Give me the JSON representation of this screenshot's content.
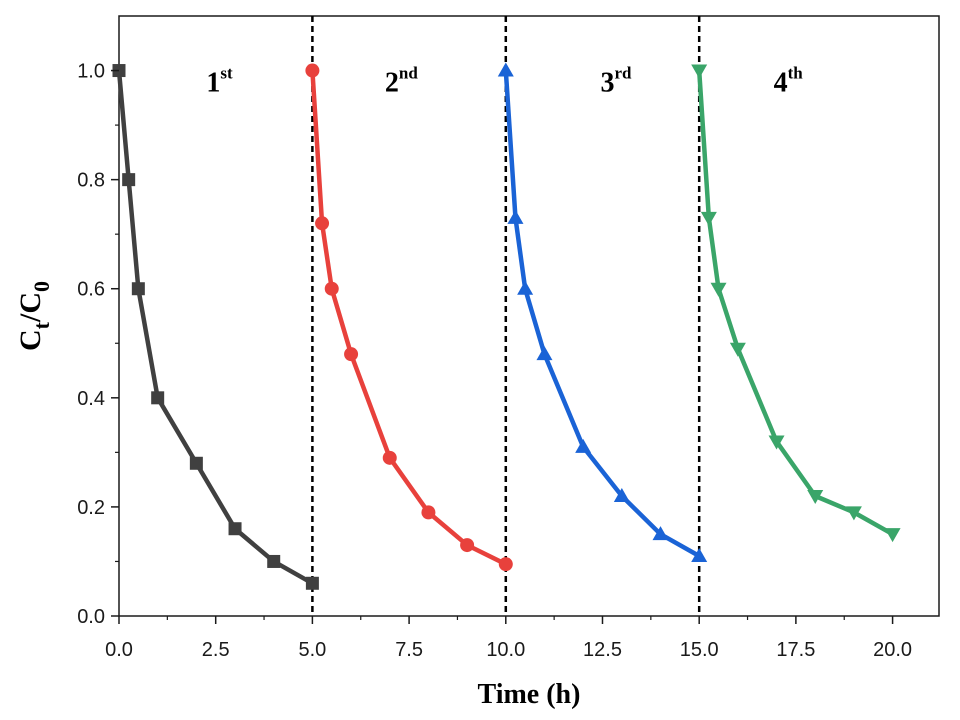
{
  "chart_data": {
    "type": "line",
    "title": "",
    "xlabel": "Time (h)",
    "ylabel": {
      "main": "C",
      "sub1": "t",
      "slash": "/C",
      "sub2": "0"
    },
    "xlim": [
      0,
      21.2
    ],
    "ylim": [
      0,
      1.1
    ],
    "xticks": [
      "0.0",
      "2.5",
      "5.0",
      "7.5",
      "10.0",
      "12.5",
      "15.0",
      "17.5",
      "20.0"
    ],
    "xtick_values": [
      0,
      2.5,
      5,
      7.5,
      10,
      12.5,
      15,
      17.5,
      20
    ],
    "yticks": [
      "0.0",
      "0.2",
      "0.4",
      "0.6",
      "0.8",
      "1.0"
    ],
    "ytick_values": [
      0,
      0.2,
      0.4,
      0.6,
      0.8,
      1.0
    ],
    "grid": false,
    "dividers": [
      5,
      10,
      15
    ],
    "annotations": [
      {
        "base": "1",
        "sup": "st",
        "x": 2.6,
        "y": 0.98
      },
      {
        "base": "2",
        "sup": "nd",
        "x": 7.3,
        "y": 0.98
      },
      {
        "base": "3",
        "sup": "rd",
        "x": 12.85,
        "y": 0.98
      },
      {
        "base": "4",
        "sup": "th",
        "x": 17.3,
        "y": 0.98
      }
    ],
    "series": [
      {
        "color": "#404040",
        "marker": "square",
        "x": [
          0,
          0.25,
          0.5,
          1,
          2,
          3,
          4,
          5
        ],
        "y": [
          1.0,
          0.8,
          0.6,
          0.4,
          0.28,
          0.16,
          0.1,
          0.06
        ]
      },
      {
        "color": "#e8413c",
        "marker": "circle",
        "x": [
          5,
          5.25,
          5.5,
          6,
          7,
          8,
          9,
          10
        ],
        "y": [
          1.0,
          0.72,
          0.6,
          0.48,
          0.29,
          0.19,
          0.13,
          0.095
        ]
      },
      {
        "color": "#1a63d6",
        "marker": "triangle-up",
        "x": [
          10,
          10.25,
          10.5,
          11,
          12,
          13,
          14,
          15
        ],
        "y": [
          1.0,
          0.73,
          0.6,
          0.48,
          0.31,
          0.22,
          0.15,
          0.11
        ]
      },
      {
        "color": "#3aa569",
        "marker": "triangle-down",
        "x": [
          15,
          15.25,
          15.5,
          16,
          17,
          18,
          19,
          20
        ],
        "y": [
          1.0,
          0.73,
          0.6,
          0.49,
          0.32,
          0.22,
          0.19,
          0.15
        ]
      }
    ]
  }
}
